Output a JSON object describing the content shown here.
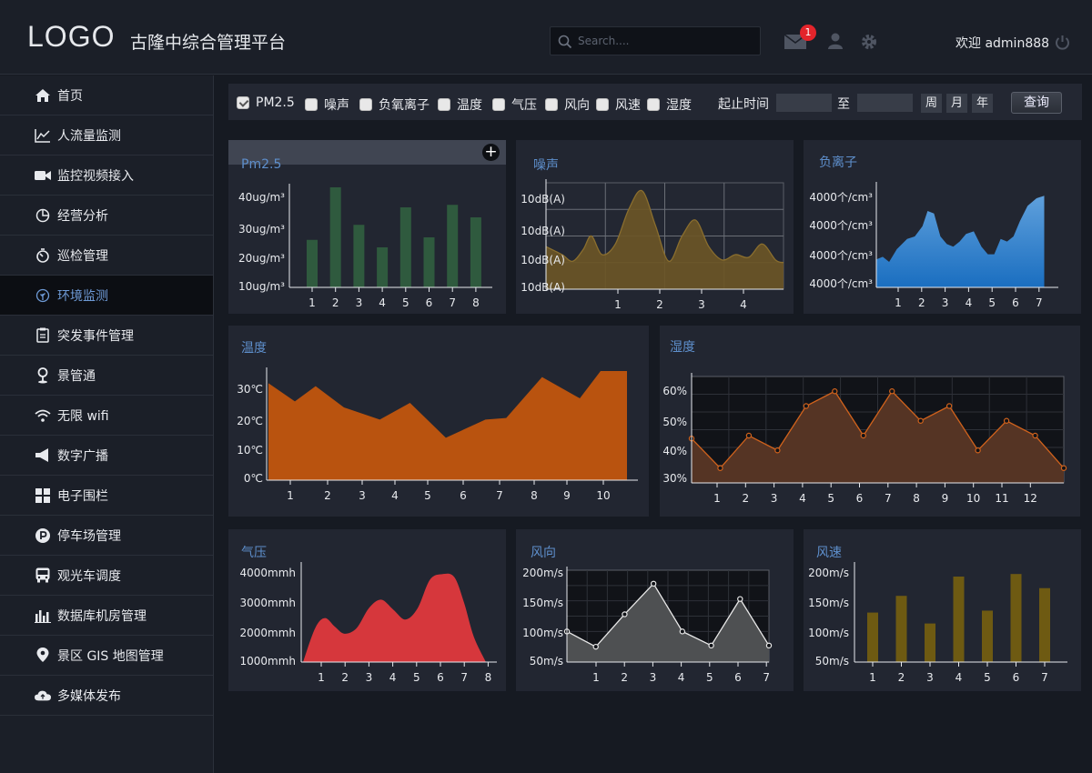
{
  "header": {
    "logo": "LOGO",
    "title": "古隆中综合管理平台",
    "search_placeholder": "Search....",
    "mail_badge": "1",
    "welcome": "欢迎 admin888",
    "icons": [
      "search-icon",
      "mail-icon",
      "user-icon",
      "gear-icon",
      "power-icon"
    ]
  },
  "sidebar": {
    "items": [
      {
        "label": "首页",
        "icon": "home-icon"
      },
      {
        "label": "人流量监测",
        "icon": "line-chart-icon"
      },
      {
        "label": "监控视频接入",
        "icon": "video-camera-icon"
      },
      {
        "label": "经营分析",
        "icon": "pie-chart-icon"
      },
      {
        "label": "巡检管理",
        "icon": "timer-icon"
      },
      {
        "label": "环境监测",
        "icon": "leaf-icon",
        "active": true
      },
      {
        "label": "突发事件管理",
        "icon": "clipboard-icon"
      },
      {
        "label": "景管通",
        "icon": "map-pin-icon"
      },
      {
        "label": "无限 wifi",
        "icon": "wifi-icon"
      },
      {
        "label": "数字广播",
        "icon": "megaphone-icon"
      },
      {
        "label": "电子围栏",
        "icon": "grid-icon"
      },
      {
        "label": "停车场管理",
        "icon": "parking-icon"
      },
      {
        "label": "观光车调度",
        "icon": "bus-icon"
      },
      {
        "label": "数据库机房管理",
        "icon": "bar-chart-icon"
      },
      {
        "label": "景区 GIS 地图管理",
        "icon": "location-icon"
      },
      {
        "label": "多媒体发布",
        "icon": "cloud-icon"
      }
    ]
  },
  "toolbar": {
    "checkboxes": [
      {
        "label": "PM2.5",
        "checked": true
      },
      {
        "label": "噪声",
        "checked": false
      },
      {
        "label": "负氧离子",
        "checked": false
      },
      {
        "label": "温度",
        "checked": false
      },
      {
        "label": "气压",
        "checked": false
      },
      {
        "label": "风向",
        "checked": false
      },
      {
        "label": "风速",
        "checked": false
      },
      {
        "label": "湿度",
        "checked": false
      }
    ],
    "time_label": "起止时间",
    "to_label": "至",
    "start_value": "",
    "end_value": "",
    "periods": [
      "周",
      "月",
      "年"
    ],
    "query_label": "查询"
  },
  "colors": {
    "pm25": "#2f5a3e",
    "noise": "#6b5526",
    "anion_top": "#5fa0dc",
    "anion_bottom": "#1a6ec0",
    "temperature": "#b9530f",
    "humidity_fill": "#553424",
    "humidity_line": "#d0621c",
    "pressure": "#d6373c",
    "wind_dir_fill": "#4e5052",
    "wind_speed": "#6e5a12"
  },
  "chart_data": [
    {
      "id": "pm25",
      "type": "bar",
      "title": "Pm2.5",
      "categories": [
        "1",
        "2",
        "3",
        "4",
        "5",
        "6",
        "7",
        "8"
      ],
      "values": [
        27,
        48,
        33,
        24,
        40,
        28,
        41,
        36
      ],
      "ytick_labels": [
        "40ug/m³",
        "30ug/m³",
        "20ug/m³",
        "10ug/m³"
      ],
      "ytick_values": [
        40,
        30,
        20,
        10
      ],
      "ylim": [
        8,
        48
      ]
    },
    {
      "id": "noise",
      "type": "area",
      "title": "噪声",
      "x": [
        0.5,
        0.8,
        1.0,
        1.2,
        1.35,
        1.55,
        1.8,
        2.05,
        2.3,
        2.55,
        2.8,
        3.05,
        3.3,
        3.55,
        3.8,
        4.05,
        4.3,
        4.55,
        4.8,
        4.95
      ],
      "values": [
        1.6,
        1.3,
        1.05,
        1.5,
        2.0,
        1.3,
        1.7,
        3.0,
        3.7,
        2.4,
        1.05,
        2.0,
        2.6,
        1.6,
        1.1,
        1.3,
        1.2,
        1.7,
        1.1,
        1.0
      ],
      "categories": [
        "1",
        "2",
        "3",
        "4"
      ],
      "ytick_labels": [
        "10dB(A)",
        "10dB(A)",
        "10dB(A)",
        "10dB(A)"
      ],
      "ylim": [
        0,
        4
      ],
      "xlim": [
        0.5,
        4.95
      ],
      "grid": true
    },
    {
      "id": "anion",
      "type": "area",
      "title": "负离子",
      "x": [
        0.5,
        0.75,
        1.0,
        1.3,
        1.7,
        2.0,
        2.3,
        2.5,
        2.75,
        3.0,
        3.25,
        3.5,
        3.75,
        4.0,
        4.3,
        4.6,
        4.85,
        5.1,
        5.35,
        5.6,
        5.85,
        6.1,
        6.4,
        6.75,
        7.05
      ],
      "values": [
        1.1,
        1.2,
        1.0,
        1.5,
        1.9,
        2.0,
        2.4,
        3.0,
        2.9,
        2.0,
        1.7,
        1.6,
        1.8,
        2.1,
        2.2,
        1.6,
        1.3,
        1.3,
        1.9,
        1.8,
        2.0,
        2.6,
        3.2,
        3.5,
        3.6
      ],
      "categories": [
        "1",
        "2",
        "3",
        "4",
        "5",
        "6",
        "7"
      ],
      "ytick_labels": [
        "4000个/cm³",
        "4000个/cm³",
        "4000个/cm³",
        "4000个/cm³"
      ],
      "ylim": [
        0,
        4
      ],
      "xlim": [
        0.5,
        7.6
      ]
    },
    {
      "id": "temperature",
      "type": "area",
      "title": "温度",
      "x": [
        0.5,
        1.2,
        1.75,
        2.5,
        3.45,
        4.25,
        5.2,
        6.25,
        6.8,
        7.75,
        8.75,
        9.3,
        10.0
      ],
      "values": [
        31,
        25,
        30,
        23,
        19,
        24.5,
        13,
        19,
        19.5,
        33,
        26,
        35,
        35
      ],
      "categories": [
        "1",
        "2",
        "3",
        "4",
        "5",
        "6",
        "7",
        "8",
        "9",
        "10"
      ],
      "ytick_labels": [
        "30℃",
        "20℃",
        "10℃",
        "0℃"
      ],
      "ytick_values": [
        30,
        20,
        10,
        0
      ],
      "ylim": [
        -1,
        35
      ]
    },
    {
      "id": "humidity",
      "type": "area",
      "title": "湿度",
      "categories": [
        "1",
        "2",
        "3",
        "4",
        "5",
        "6",
        "7",
        "8",
        "9",
        "10",
        "11",
        "12"
      ],
      "x": [
        0,
        1,
        2,
        3,
        4,
        5,
        6,
        7,
        8,
        9,
        10,
        11,
        12,
        13
      ],
      "values": [
        44,
        34,
        45,
        40,
        55,
        60,
        45,
        60,
        50,
        55,
        40,
        50,
        45,
        34
      ],
      "ytick_labels": [
        "60%",
        "50%",
        "40%",
        "30%"
      ],
      "ytick_values": [
        60,
        50,
        40,
        30
      ],
      "ylim": [
        29,
        65
      ],
      "grid": true
    },
    {
      "id": "pressure",
      "type": "area",
      "title": "气压",
      "x": [
        0.1,
        0.6,
        1.0,
        1.4,
        1.8,
        2.3,
        2.8,
        3.3,
        3.8,
        4.3,
        4.8,
        5.3,
        5.8,
        6.3,
        6.7,
        7.1,
        7.6
      ],
      "values": [
        1000,
        2200,
        2550,
        2250,
        2000,
        2200,
        2900,
        3200,
        2850,
        2500,
        2900,
        3900,
        4100,
        4000,
        3100,
        1900,
        1000
      ],
      "categories": [
        "1",
        "2",
        "3",
        "4",
        "5",
        "6",
        "7",
        "8"
      ],
      "ytick_labels": [
        "4000mmh",
        "3000mmh",
        "2000mmh",
        "1000mmh"
      ],
      "ytick_values": [
        4000,
        3000,
        2000,
        1000
      ],
      "ylim": [
        1000,
        4400
      ]
    },
    {
      "id": "wind_direction",
      "type": "area",
      "title": "风向",
      "categories": [
        "1",
        "2",
        "3",
        "4",
        "5",
        "6",
        "7"
      ],
      "x": [
        0,
        1,
        2,
        3,
        4,
        5,
        6,
        7
      ],
      "values": [
        100,
        75,
        128,
        178,
        100,
        77,
        153,
        77
      ],
      "ytick_labels": [
        "200m/s",
        "150m/s",
        "100m/s",
        "50m/s"
      ],
      "ytick_values": [
        200,
        150,
        100,
        50
      ],
      "ylim": [
        50,
        200
      ],
      "grid": true
    },
    {
      "id": "wind_speed",
      "type": "bar",
      "title": "风速",
      "categories": [
        "1",
        "2",
        "3",
        "4",
        "5",
        "6",
        "7"
      ],
      "values": [
        127,
        153,
        110,
        183,
        130,
        187,
        165
      ],
      "ytick_labels": [
        "200m/s",
        "150m/s",
        "100m/s",
        "50m/s"
      ],
      "ytick_values": [
        200,
        150,
        100,
        50
      ],
      "ylim": [
        50,
        200
      ]
    }
  ]
}
